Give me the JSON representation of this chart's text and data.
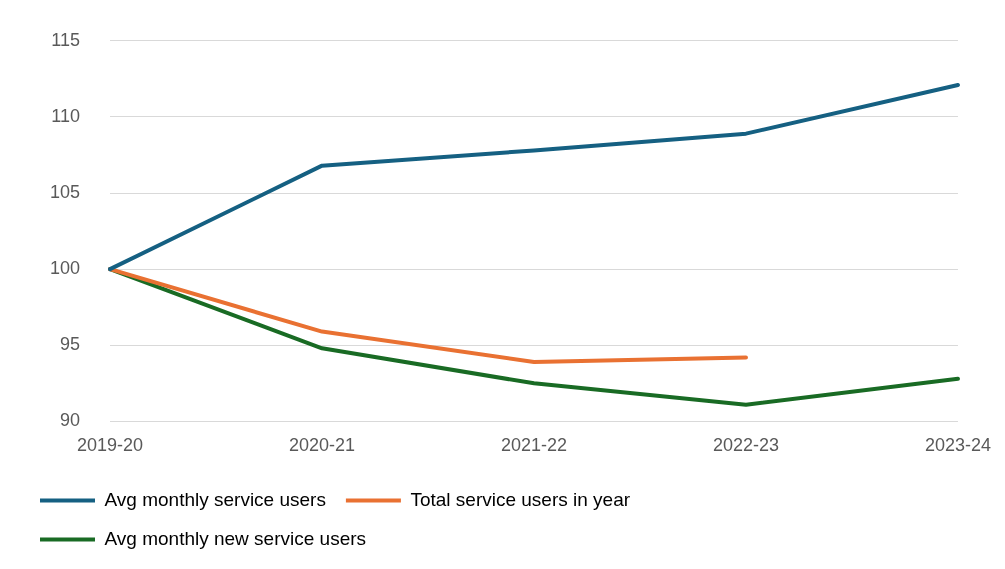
{
  "chart_data": {
    "type": "line",
    "categories": [
      "2019-20",
      "2020-21",
      "2021-22",
      "2022-23",
      "2023-24"
    ],
    "series": [
      {
        "name": "Avg monthly service users",
        "color": "#156082",
        "values": [
          100,
          106.8,
          107.8,
          108.9,
          112.1
        ]
      },
      {
        "name": "Total service users in year",
        "color": "#e97132",
        "values": [
          100,
          95.9,
          93.9,
          94.2,
          null
        ]
      },
      {
        "name": "Avg monthly new service users",
        "color": "#196b24",
        "values": [
          100,
          94.8,
          92.5,
          91.1,
          92.8
        ]
      }
    ],
    "ylim": [
      90,
      115
    ],
    "yticks": [
      90,
      95,
      100,
      105,
      110,
      115
    ],
    "grid": "y",
    "legend": "bottom",
    "marker": "none",
    "line_style": "solid"
  }
}
